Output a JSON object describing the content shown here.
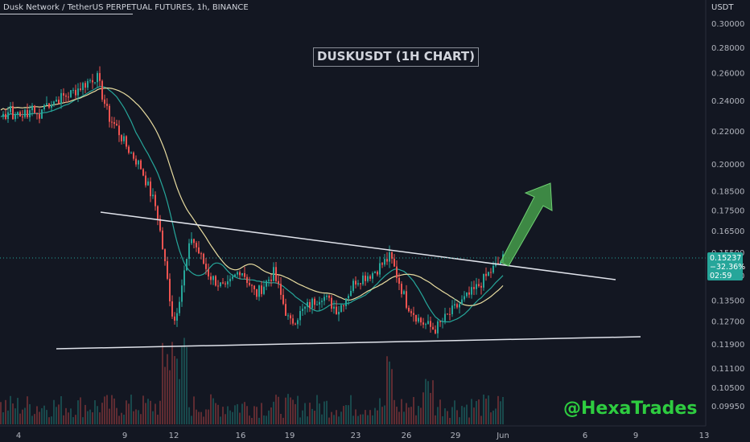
{
  "header": {
    "title": "Dusk Network / TetherUS PERPETUAL FUTURES, 1h, BINANCE"
  },
  "watermark": "@HexaTrades",
  "axis_unit": "USDT",
  "last_price": {
    "price": "0.15237",
    "change": "−32.36%",
    "countdown": "02:59",
    "color": "#26a69a"
  },
  "colors": {
    "background": "#131722",
    "up_candle": "#26a69a",
    "down_candle": "#ef5350",
    "ma_fast": "#26a69a",
    "ma_slow": "#e8dca0",
    "trendline": "#ffffff",
    "arrow": "#4caf50",
    "watermark": "#2ecc40"
  },
  "chart_data": {
    "type": "candlestick",
    "title": "DUSKUSDT (1H CHART)",
    "symbol": "DUSKUSDT",
    "timeframe": "1h",
    "y_scale": "log",
    "ylim": [
      0.095,
      0.32
    ],
    "y_ticks": [
      "0.30000",
      "0.28000",
      "0.26000",
      "0.24000",
      "0.22000",
      "0.20000",
      "0.18500",
      "0.17500",
      "0.16500",
      "0.15500",
      "0.14500",
      "0.13500",
      "0.12700",
      "0.11900",
      "0.11100",
      "0.10500",
      "0.09950"
    ],
    "x_ticks": [
      "4",
      "9",
      "12",
      "16",
      "19",
      "23",
      "26",
      "29",
      "Jun",
      "6",
      "9",
      "13"
    ],
    "price_path": [
      [
        "4",
        0.237
      ],
      [
        "5",
        0.245
      ],
      [
        "6",
        0.258
      ],
      [
        "7",
        0.229
      ],
      [
        "8",
        0.222
      ],
      [
        "9",
        0.212
      ],
      [
        "10",
        0.198
      ],
      [
        "11",
        0.175
      ],
      [
        "12",
        0.126
      ],
      [
        "13",
        0.162
      ],
      [
        "14",
        0.145
      ],
      [
        "15",
        0.139
      ],
      [
        "16",
        0.148
      ],
      [
        "17",
        0.137
      ],
      [
        "18",
        0.146
      ],
      [
        "19",
        0.126
      ],
      [
        "20",
        0.132
      ],
      [
        "21",
        0.137
      ],
      [
        "22",
        0.131
      ],
      [
        "23",
        0.143
      ],
      [
        "24",
        0.146
      ],
      [
        "25",
        0.153
      ],
      [
        "26",
        0.134
      ],
      [
        "27",
        0.127
      ],
      [
        "28",
        0.124
      ],
      [
        "29",
        0.132
      ],
      [
        "30",
        0.139
      ],
      [
        "31",
        0.146
      ],
      [
        "Jun",
        0.152
      ]
    ],
    "last_price": 0.15237,
    "annotations": [
      {
        "type": "descending-trendline",
        "from": [
          "6",
          0.171
        ],
        "to": [
          "5",
          0.142
        ]
      },
      {
        "type": "support-line",
        "from": [
          "3",
          0.119
        ],
        "to": [
          "9",
          0.122
        ]
      },
      {
        "type": "arrow",
        "direction": "up",
        "from": [
          "Jun",
          0.152
        ],
        "to": [
          "4",
          0.188
        ]
      }
    ],
    "moving_averages": [
      {
        "name": "",
        "color": "#26a69a"
      },
      {
        "name": "",
        "color": "#e8dca0"
      }
    ]
  }
}
